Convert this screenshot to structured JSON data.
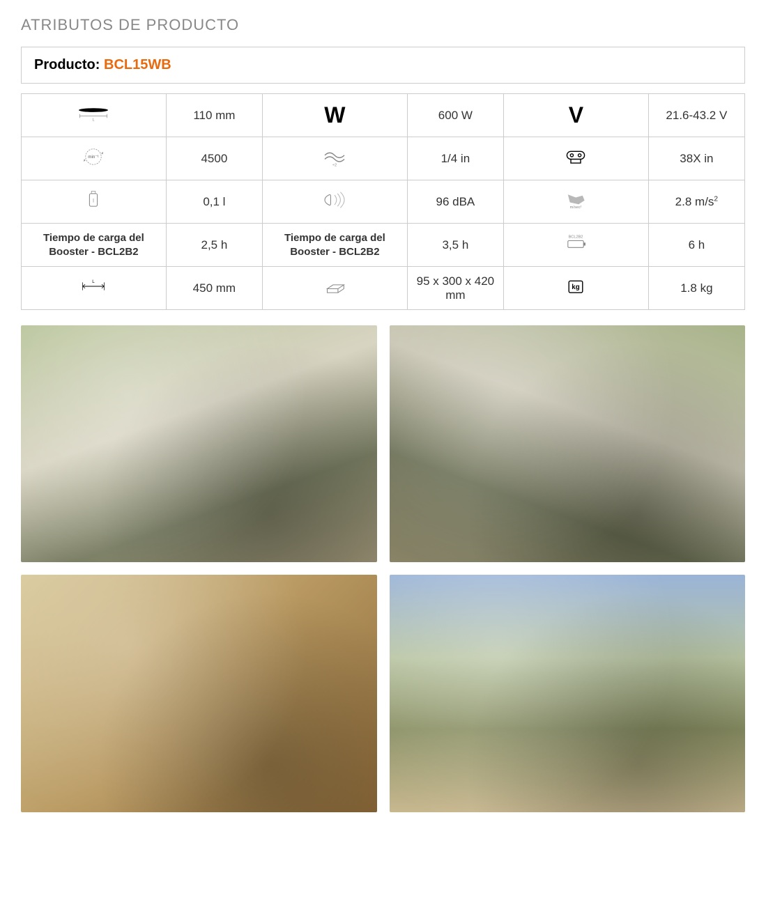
{
  "section_title": "ATRIBUTOS DE PRODUCTO",
  "product": {
    "label": "Producto:",
    "code": "BCL15WB"
  },
  "table": {
    "rows": [
      {
        "c1": {
          "icon": "bar-length"
        },
        "v1": "110 mm",
        "c2": {
          "glyph": "W"
        },
        "v2": "600 W",
        "c3": {
          "glyph": "V"
        },
        "v3": "21.6-43.2 V"
      },
      {
        "c1": {
          "icon": "rpm"
        },
        "v1": "4500",
        "c2": {
          "icon": "chain"
        },
        "v2": "1/4 in",
        "c3": {
          "icon": "gauge"
        },
        "v3": "38X in"
      },
      {
        "c1": {
          "icon": "oil"
        },
        "v1": "0,1 l",
        "c2": {
          "icon": "noise"
        },
        "v2": "96 dBA",
        "c3": {
          "icon": "vibration"
        },
        "v3_html": "2.8 m/s<sup>2</sup>"
      },
      {
        "c1": {
          "text": "Tiempo de carga del Booster - BCL2B2"
        },
        "v1": "2,5 h",
        "c2": {
          "text": "Tiempo de carga del Booster - BCL2B2"
        },
        "v2": "3,5 h",
        "c3": {
          "icon": "battery",
          "sub": "BCL2B2"
        },
        "v3": "6 h"
      },
      {
        "c1": {
          "icon": "length"
        },
        "v1": "450 mm",
        "c2": {
          "icon": "box"
        },
        "v2": "95 x 300 x 420 mm",
        "c3": {
          "icon": "kg"
        },
        "v3": "1.8 kg"
      }
    ]
  },
  "colors": {
    "accent": "#e96a0e",
    "border": "#cccccc",
    "muted": "#888888"
  }
}
